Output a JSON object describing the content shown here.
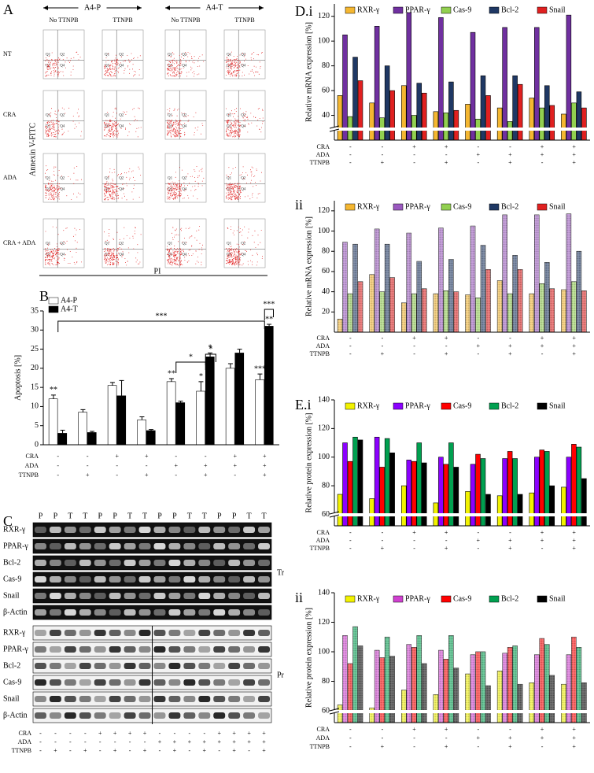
{
  "panel_a": {
    "label": "A",
    "groups": [
      "A4-P",
      "A4-T"
    ],
    "columns": [
      "No TTNPB",
      "TTNPB",
      "No TTNPB",
      "TTNPB"
    ],
    "rows": [
      "NT",
      "CRA",
      "ADA",
      "CRA + ADA"
    ],
    "y_label": "Annexin V-FITC",
    "x_label": "PI",
    "quadrants": [
      "Q1",
      "Q2",
      "Q3",
      "Q4"
    ]
  },
  "panel_c": {
    "label": "C",
    "lanes": [
      "P",
      "P",
      "T",
      "T",
      "P",
      "P",
      "T",
      "T",
      "P",
      "P",
      "T",
      "T",
      "P",
      "P",
      "T",
      "T"
    ],
    "transcript_rows": [
      "RXR-γ",
      "PPAR-γ",
      "Bcl-2",
      "Cas-9",
      "Snail",
      "β-Actin"
    ],
    "transcript_label": "Tr",
    "protein_rows": [
      "RXR-γ",
      "PPAR-γ",
      "Bcl-2",
      "Cas-9",
      "Snail",
      "β-Actin"
    ],
    "protein_label": "Pr",
    "treatments": [
      {
        "name": "CRA",
        "signs": [
          "-",
          "-",
          "-",
          "-",
          "+",
          "+",
          "+",
          "+",
          "-",
          "-",
          "-",
          "-",
          "+",
          "+",
          "+",
          "+"
        ]
      },
      {
        "name": "ADA",
        "signs": [
          "-",
          "-",
          "-",
          "-",
          "-",
          "-",
          "-",
          "-",
          "+",
          "+",
          "+",
          "+",
          "+",
          "+",
          "+",
          "+"
        ]
      },
      {
        "name": "TTNPB",
        "signs": [
          "-",
          "+",
          "-",
          "+",
          "-",
          "+",
          "-",
          "+",
          "-",
          "+",
          "-",
          "+",
          "-",
          "+",
          "-",
          "+"
        ]
      }
    ]
  },
  "chart_data": [
    {
      "type": "bar",
      "title": "B",
      "y_label": "Apoptosis [%]",
      "ylim": [
        0,
        35
      ],
      "yticks": [
        0,
        5,
        10,
        15,
        20,
        25,
        30,
        35
      ],
      "legend": "top-left",
      "series": [
        {
          "name": "A4-P",
          "color": "#ffffff",
          "values": [
            12,
            8.5,
            15.5,
            6.5,
            16.5,
            14,
            20,
            17
          ],
          "errors": [
            1,
            0.7,
            0.8,
            0.8,
            0.8,
            2.5,
            1.2,
            1.5
          ],
          "stars": [
            "**",
            null,
            null,
            null,
            "**",
            "*",
            null,
            "***"
          ]
        },
        {
          "name": "A4-T",
          "color": "#000000",
          "values": [
            3,
            3.2,
            12.8,
            3.7,
            11,
            23,
            24,
            31
          ],
          "errors": [
            0.8,
            0.3,
            4,
            0.3,
            0.4,
            1,
            1,
            0.5
          ],
          "stars": [
            null,
            null,
            null,
            null,
            null,
            "*",
            null,
            "**"
          ]
        }
      ],
      "annotations": [
        "***",
        "*",
        "*",
        "***"
      ],
      "treatments": [
        {
          "name": "CRA",
          "signs": [
            "-",
            "-",
            "+",
            "+",
            "-",
            "-",
            "+",
            "+"
          ]
        },
        {
          "name": "ADA",
          "signs": [
            "-",
            "-",
            "-",
            "-",
            "+",
            "+",
            "+",
            "+"
          ]
        },
        {
          "name": "TTNPB",
          "signs": [
            "-",
            "+",
            "-",
            "+",
            "-",
            "+",
            "-",
            "+"
          ]
        }
      ]
    },
    {
      "type": "bar",
      "title": "D.i",
      "y_label": "Relative mRNA expression [%]",
      "ylim": [
        20,
        130
      ],
      "yticks": [
        40,
        60,
        80,
        100,
        120
      ],
      "legend": "top",
      "series": [
        {
          "name": "RXR-γ",
          "color": "#f5b731",
          "values": [
            56,
            50,
            64,
            43,
            49,
            46,
            54,
            41
          ]
        },
        {
          "name": "PPAR-γ",
          "color": "#7030a0",
          "values": [
            105,
            112,
            123,
            119,
            107,
            111,
            111,
            121
          ]
        },
        {
          "name": "Cas-9",
          "color": "#92d050",
          "values": [
            39,
            38,
            40,
            42,
            37,
            35,
            46,
            50
          ]
        },
        {
          "name": "Bcl-2",
          "color": "#1f3864",
          "values": [
            87,
            80,
            66,
            67,
            72,
            72,
            64,
            59
          ]
        },
        {
          "name": "Snail",
          "color": "#e02020",
          "values": [
            68,
            60,
            58,
            44,
            56,
            65,
            48,
            46
          ]
        }
      ],
      "treatments": [
        {
          "name": "CRA",
          "signs": [
            "-",
            "-",
            "+",
            "+",
            "-",
            "-",
            "+",
            "+"
          ]
        },
        {
          "name": "ADA",
          "signs": [
            "-",
            "-",
            "-",
            "-",
            "+",
            "+",
            "+",
            "+"
          ]
        },
        {
          "name": "TTNPB",
          "signs": [
            "-",
            "+",
            "-",
            "+",
            "-",
            "+",
            "-",
            "+"
          ]
        }
      ]
    },
    {
      "type": "bar",
      "title": "ii",
      "y_label": "Relative mRNA expression [%]",
      "ylim": [
        0,
        130
      ],
      "yticks": [
        20,
        40,
        60,
        80,
        100,
        120
      ],
      "legend": "top",
      "pattern": "dots",
      "series": [
        {
          "name": "RXR-γ",
          "color": "#f5b731",
          "values": [
            13,
            57,
            29,
            38,
            37,
            51,
            38,
            42
          ]
        },
        {
          "name": "PPAR-γ",
          "color": "#9b59c0",
          "values": [
            89,
            102,
            98,
            103,
            105,
            116,
            116,
            117
          ]
        },
        {
          "name": "Cas-9",
          "color": "#92d050",
          "values": [
            38,
            40,
            38,
            41,
            34,
            38,
            48,
            50
          ]
        },
        {
          "name": "Bcl-2",
          "color": "#1f3864",
          "values": [
            87,
            87,
            70,
            72,
            86,
            76,
            69,
            80
          ]
        },
        {
          "name": "Snail",
          "color": "#e02020",
          "values": [
            50,
            54,
            43,
            40,
            62,
            62,
            43,
            41
          ]
        }
      ],
      "treatments": [
        {
          "name": "CRA",
          "signs": [
            "-",
            "-",
            "+",
            "+",
            "-",
            "-",
            "+",
            "+"
          ]
        },
        {
          "name": "ADA",
          "signs": [
            "-",
            "-",
            "-",
            "-",
            "+",
            "+",
            "+",
            "+"
          ]
        },
        {
          "name": "TTNPB",
          "signs": [
            "-",
            "+",
            "-",
            "+",
            "-",
            "+",
            "-",
            "+"
          ]
        }
      ]
    },
    {
      "type": "bar",
      "title": "E.i",
      "y_label": "Relative protein expression [%]",
      "ylim": [
        52,
        140
      ],
      "yticks": [
        60,
        80,
        100,
        120,
        140
      ],
      "legend": "top",
      "series": [
        {
          "name": "RXR-γ",
          "color": "#f2f200",
          "values": [
            74,
            71,
            80,
            68,
            76,
            73,
            75,
            79
          ]
        },
        {
          "name": "PPAR-γ",
          "color": "#8b00ff",
          "values": [
            110,
            114,
            98,
            100,
            95,
            99,
            100,
            100
          ]
        },
        {
          "name": "Cas-9",
          "color": "#ff0000",
          "values": [
            97,
            93,
            97,
            95,
            102,
            104,
            105,
            109
          ]
        },
        {
          "name": "Bcl-2",
          "color": "#00a050",
          "values": [
            114,
            113,
            110,
            110,
            99,
            99,
            104,
            107
          ]
        },
        {
          "name": "Snail",
          "color": "#000000",
          "values": [
            112,
            103,
            96,
            93,
            74,
            74,
            80,
            85
          ]
        }
      ],
      "treatments": [
        {
          "name": "CRA",
          "signs": [
            "-",
            "-",
            "+",
            "+",
            "-",
            "-",
            "+",
            "+"
          ]
        },
        {
          "name": "ADA",
          "signs": [
            "-",
            "-",
            "-",
            "-",
            "+",
            "+",
            "+",
            "+"
          ]
        },
        {
          "name": "TTNPB",
          "signs": [
            "-",
            "+",
            "-",
            "+",
            "-",
            "+",
            "-",
            "+"
          ]
        }
      ]
    },
    {
      "type": "bar",
      "title": "ii",
      "y_label": "Relative protein expression [%]",
      "ylim": [
        52,
        140
      ],
      "yticks": [
        60,
        80,
        100,
        120,
        140
      ],
      "legend": "top",
      "pattern": "dots",
      "series": [
        {
          "name": "RXR-γ",
          "color": "#f2f200",
          "values": [
            64,
            62,
            74,
            71,
            85,
            87,
            79,
            78
          ]
        },
        {
          "name": "PPAR-γ",
          "color": "#d040d0",
          "values": [
            111,
            101,
            105,
            101,
            98,
            99,
            98,
            98
          ]
        },
        {
          "name": "Cas-9",
          "color": "#ff0000",
          "values": [
            92,
            96,
            103,
            95,
            100,
            103,
            109,
            110
          ]
        },
        {
          "name": "Bcl-2",
          "color": "#00a050",
          "values": [
            117,
            110,
            111,
            111,
            100,
            104,
            105,
            103
          ]
        },
        {
          "name": "Snail",
          "color": "#000000",
          "values": [
            104,
            97,
            92,
            89,
            77,
            78,
            84,
            79
          ]
        }
      ],
      "treatments": [
        {
          "name": "CRA",
          "signs": [
            "-",
            "-",
            "+",
            "+",
            "-",
            "-",
            "+",
            "+"
          ]
        },
        {
          "name": "ADA",
          "signs": [
            "-",
            "-",
            "-",
            "-",
            "+",
            "+",
            "+",
            "+"
          ]
        },
        {
          "name": "TTNPB",
          "signs": [
            "-",
            "+",
            "-",
            "+",
            "-",
            "+",
            "-",
            "+"
          ]
        }
      ]
    }
  ]
}
